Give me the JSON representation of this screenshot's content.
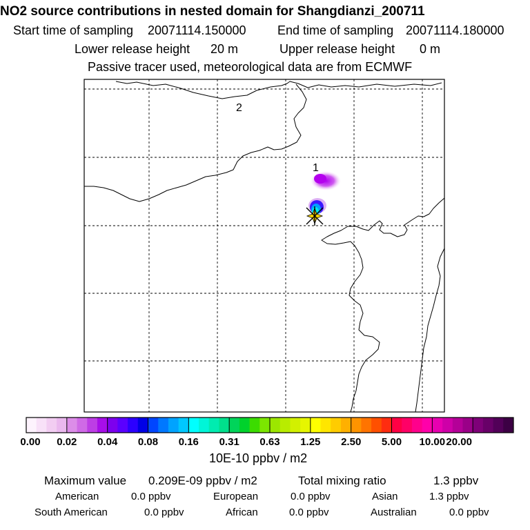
{
  "header": {
    "title": "NO2 source contributions in nested domain for Shangdianzi_200711",
    "start_label": "Start time of sampling",
    "start_value": "20071114.150000",
    "end_label": "End time of sampling",
    "end_value": "20071114.180000",
    "lower_label": "Lower release height",
    "lower_value": "20 m",
    "upper_label": "Upper release height",
    "upper_value": "0 m",
    "tracer_note": "Passive tracer used, meteorological data are from ECMWF"
  },
  "map": {
    "marker_labels": [
      "1",
      "2"
    ],
    "station_marker": "station-star-icon"
  },
  "colorbar": {
    "labels": [
      "0.00",
      "0.02",
      "0.04",
      "0.08",
      "0.16",
      "0.31",
      "0.63",
      "1.25",
      "2.50",
      "5.00",
      "10.00",
      "20.00"
    ],
    "unit": "10E-10 ppbv / m2",
    "colors": [
      [
        "#fdf3fd",
        "#f8e1f8",
        "#f2cdf2",
        "#eab8ee"
      ],
      [
        "#dc8de8",
        "#cf6ae6",
        "#bd3ee5",
        "#a70ee9"
      ],
      [
        "#7d00ee",
        "#5a00ff",
        "#2c00ff",
        "#0000e6"
      ],
      [
        "#0046ff",
        "#0078ff",
        "#00a3ff",
        "#00c8ff"
      ],
      [
        "#00ffff",
        "#00f5d8",
        "#00ecb0",
        "#00e08c"
      ],
      [
        "#00d45a",
        "#00d22c",
        "#3cdc00",
        "#7ce600"
      ],
      [
        "#9ce600",
        "#b8ec00",
        "#d2f000",
        "#e6f600"
      ],
      [
        "#ffff00",
        "#ffe600",
        "#ffcc00",
        "#ffb000"
      ],
      [
        "#ff9400",
        "#ff7400",
        "#ff5000",
        "#ff2c10"
      ],
      [
        "#ff0044",
        "#ff0066",
        "#ff008c",
        "#ff00aa"
      ],
      [
        "#e800b0",
        "#ce00a8",
        "#b40098",
        "#9a0088"
      ],
      [
        "#7e0078",
        "#680068",
        "#520058",
        "#3c0044"
      ]
    ]
  },
  "stats": {
    "max_label": "Maximum value",
    "max_value": "0.209E-09 ppbv / m2",
    "total_label": "Total mixing ratio",
    "total_value": "1.3 ppbv",
    "regions": [
      {
        "name": "American",
        "value": "0.0 ppbv"
      },
      {
        "name": "European",
        "value": "0.0 ppbv"
      },
      {
        "name": "Asian",
        "value": "1.3 ppbv"
      },
      {
        "name": "South American",
        "value": "0.0 ppbv"
      },
      {
        "name": "African",
        "value": "0.0 ppbv"
      },
      {
        "name": "Australian",
        "value": "0.0 ppbv"
      }
    ]
  }
}
